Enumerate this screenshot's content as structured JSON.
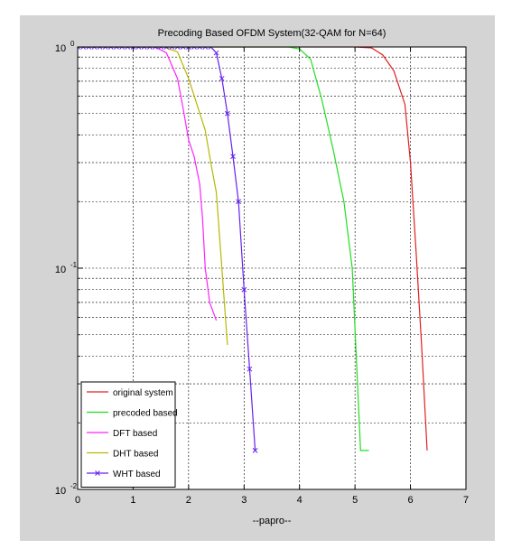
{
  "chart_data": {
    "type": "line",
    "title": "Precoding Based OFDM System(32-QAM for N=64)",
    "xlabel": "--papro--",
    "ylabel": "",
    "xlim": [
      0,
      7
    ],
    "ylim": [
      0.01,
      1
    ],
    "yscale": "log",
    "grid": true,
    "x_ticks": [
      "0",
      "1",
      "2",
      "3",
      "4",
      "5",
      "6",
      "7"
    ],
    "y_ticks": [
      {
        "value": 1,
        "base": "10",
        "exp": "0"
      },
      {
        "value": 0.1,
        "base": "10",
        "exp": "-1"
      },
      {
        "value": 0.01,
        "base": "10",
        "exp": "-2"
      }
    ],
    "legend_position": "bottom-left",
    "series": [
      {
        "name": "original system",
        "color": "#e02020",
        "marker": "none",
        "x": [
          0,
          3.95,
          5.0,
          5.3,
          5.5,
          5.7,
          5.9,
          6.0,
          6.1,
          6.2,
          6.3
        ],
        "y": [
          1,
          1,
          1,
          0.99,
          0.92,
          0.78,
          0.55,
          0.3,
          0.12,
          0.045,
          0.015
        ]
      },
      {
        "name": "precoded based",
        "color": "#22dd22",
        "marker": "none",
        "x": [
          0,
          3.8,
          4.0,
          4.2,
          4.4,
          4.6,
          4.8,
          4.95,
          5.1,
          5.25
        ],
        "y": [
          1,
          1,
          0.98,
          0.88,
          0.58,
          0.35,
          0.2,
          0.1,
          0.015,
          0.015
        ]
      },
      {
        "name": "DFT based",
        "color": "#ff22ff",
        "marker": "none",
        "x": [
          0,
          1.4,
          1.6,
          1.8,
          1.9,
          2.0,
          2.1,
          2.2,
          2.25,
          2.3,
          2.38,
          2.5
        ],
        "y": [
          1,
          1,
          0.94,
          0.72,
          0.53,
          0.38,
          0.32,
          0.24,
          0.17,
          0.1,
          0.07,
          0.058
        ]
      },
      {
        "name": "DHT based",
        "color": "#b8b800",
        "marker": "none",
        "x": [
          0,
          1.55,
          1.8,
          2.0,
          2.15,
          2.3,
          2.4,
          2.5,
          2.6,
          2.7
        ],
        "y": [
          1,
          1,
          0.95,
          0.72,
          0.55,
          0.42,
          0.3,
          0.22,
          0.1,
          0.045
        ]
      },
      {
        "name": "WHT based",
        "color": "#6622ee",
        "marker": "x",
        "x": [
          0,
          0.1,
          0.2,
          0.3,
          0.4,
          0.5,
          0.6,
          0.7,
          0.8,
          0.9,
          1.0,
          1.1,
          1.2,
          1.3,
          1.4,
          1.5,
          1.6,
          1.7,
          1.8,
          1.9,
          2.0,
          2.1,
          2.2,
          2.3,
          2.4,
          2.5,
          2.6,
          2.7,
          2.8,
          2.9,
          3.0,
          3.1,
          3.2
        ],
        "y": [
          1,
          1,
          1,
          1,
          1,
          1,
          1,
          1,
          1,
          1,
          1,
          1,
          1,
          1,
          1,
          1,
          1,
          1,
          1,
          1,
          1,
          1,
          1,
          1,
          1,
          0.94,
          0.72,
          0.5,
          0.32,
          0.2,
          0.08,
          0.035,
          0.015
        ]
      }
    ]
  }
}
